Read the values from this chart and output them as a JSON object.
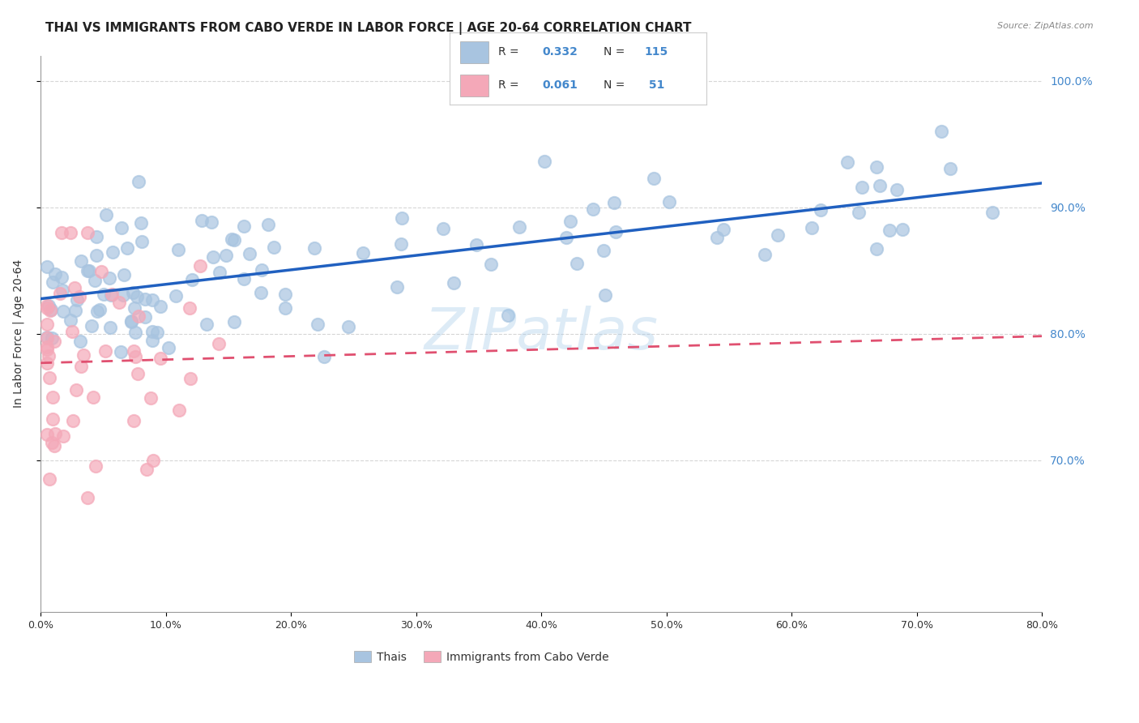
{
  "title": "THAI VS IMMIGRANTS FROM CABO VERDE IN LABOR FORCE | AGE 20-64 CORRELATION CHART",
  "source": "Source: ZipAtlas.com",
  "ylabel": "In Labor Force | Age 20-64",
  "x_min": 0.0,
  "x_max": 0.8,
  "y_min": 0.58,
  "y_max": 1.02,
  "y_tick_vals": [
    0.7,
    0.8,
    0.9,
    1.0
  ],
  "R_thai": 0.332,
  "N_thai": 115,
  "R_cabo": 0.061,
  "N_cabo": 51,
  "thai_color": "#a8c4e0",
  "cabo_color": "#f4a8b8",
  "thai_line_color": "#2060c0",
  "cabo_line_color": "#e05070",
  "watermark": "ZIPatlas",
  "background_color": "#ffffff",
  "grid_color": "#cccccc",
  "title_fontsize": 11,
  "label_fontsize": 10,
  "tick_fontsize": 9,
  "axis_color": "#4488cc"
}
